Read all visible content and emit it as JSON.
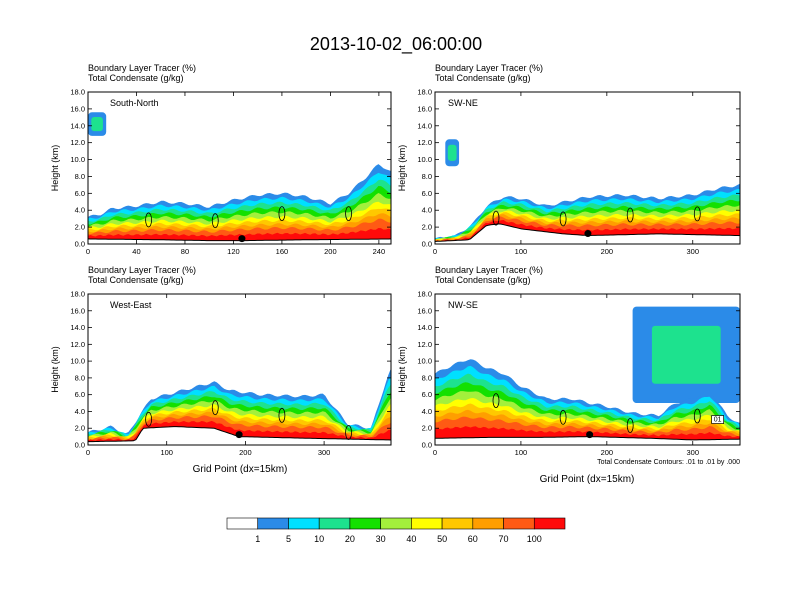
{
  "figure": {
    "title": "2013-10-02_06:00:00",
    "xlabel": "Grid Point (dx=15km)",
    "ylabel": "Height (km)",
    "field_label": "Boundary Layer Tracer   (%)",
    "contour_label": "Total Condensate   (g/kg)",
    "contour_note": "Total Condensate Contours: .01 to .01 by .000",
    "contour_value_label": "01"
  },
  "colorbar": {
    "levels": [
      "1",
      "5",
      "10",
      "20",
      "30",
      "40",
      "50",
      "60",
      "70",
      "100"
    ],
    "colors": [
      "#ffffff",
      "#2b8be8",
      "#00e0ff",
      "#1de28e",
      "#14e000",
      "#a3f03c",
      "#ffff00",
      "#ffc800",
      "#ff9e00",
      "#ff5a14",
      "#ff0a0a"
    ]
  },
  "chart_data": [
    {
      "type": "heatmap",
      "label": "South-North",
      "xlim": [
        0,
        250
      ],
      "xticks": [
        "0",
        "40",
        "80",
        "120",
        "160",
        "200",
        "240"
      ],
      "ylim": [
        0,
        18
      ],
      "yticks": [
        "0.0",
        "2.0",
        "4.0",
        "6.0",
        "8.0",
        "10.0",
        "12.0",
        "14.0",
        "16.0",
        "18.0"
      ],
      "marker_x": 127,
      "terrain_top": [
        [
          0,
          0.6
        ],
        [
          60,
          0.5
        ],
        [
          100,
          0.4
        ],
        [
          127,
          0.4
        ],
        [
          180,
          0.5
        ],
        [
          250,
          0.6
        ]
      ],
      "plume_top": [
        [
          0,
          3.2
        ],
        [
          10,
          3.5
        ],
        [
          20,
          4.2
        ],
        [
          40,
          4.5
        ],
        [
          60,
          5.0
        ],
        [
          80,
          4.8
        ],
        [
          100,
          4.4
        ],
        [
          120,
          5.2
        ],
        [
          140,
          5.8
        ],
        [
          160,
          6.0
        ],
        [
          180,
          5.6
        ],
        [
          200,
          4.8
        ],
        [
          215,
          6.0
        ],
        [
          230,
          8.0
        ],
        [
          240,
          9.5
        ],
        [
          250,
          8.5
        ]
      ],
      "upper_cloud": {
        "x": [
          0,
          15
        ],
        "ylim": [
          12.8,
          15.6
        ]
      }
    },
    {
      "type": "heatmap",
      "label": "SW-NE",
      "xlim": [
        0,
        355
      ],
      "xticks": [
        "0",
        "100",
        "200",
        "300"
      ],
      "ylim": [
        0,
        18
      ],
      "yticks": [
        "0.0",
        "2.0",
        "4.0",
        "6.0",
        "8.0",
        "10.0",
        "12.0",
        "14.0",
        "16.0",
        "18.0"
      ],
      "marker_x": 178,
      "terrain_top": [
        [
          0,
          0.3
        ],
        [
          40,
          0.5
        ],
        [
          60,
          2.2
        ],
        [
          75,
          2.4
        ],
        [
          100,
          1.8
        ],
        [
          150,
          1.2
        ],
        [
          178,
          1.0
        ],
        [
          260,
          1.2
        ],
        [
          355,
          1.0
        ]
      ],
      "plume_top": [
        [
          0,
          0.6
        ],
        [
          25,
          1.0
        ],
        [
          45,
          2.5
        ],
        [
          60,
          4.5
        ],
        [
          80,
          5.6
        ],
        [
          100,
          5.4
        ],
        [
          130,
          4.5
        ],
        [
          160,
          5.2
        ],
        [
          180,
          5.6
        ],
        [
          220,
          5.8
        ],
        [
          260,
          5.4
        ],
        [
          300,
          5.8
        ],
        [
          330,
          6.6
        ],
        [
          355,
          7.0
        ]
      ],
      "upper_cloud": {
        "x": [
          12,
          28
        ],
        "ylim": [
          9.2,
          12.4
        ]
      }
    },
    {
      "type": "heatmap",
      "label": "West-East",
      "xlim": [
        0,
        385
      ],
      "xticks": [
        "0",
        "100",
        "200",
        "300"
      ],
      "ylim": [
        0,
        18
      ],
      "yticks": [
        "0.0",
        "2.0",
        "4.0",
        "6.0",
        "8.0",
        "10.0",
        "12.0",
        "14.0",
        "16.0",
        "18.0"
      ],
      "marker_x": 192,
      "terrain_top": [
        [
          0,
          0.4
        ],
        [
          60,
          0.5
        ],
        [
          70,
          2.0
        ],
        [
          110,
          2.2
        ],
        [
          160,
          2.0
        ],
        [
          192,
          1.0
        ],
        [
          280,
          0.8
        ],
        [
          385,
          0.6
        ]
      ],
      "plume_top": [
        [
          0,
          1.5
        ],
        [
          30,
          2.2
        ],
        [
          50,
          1.2
        ],
        [
          65,
          3.5
        ],
        [
          80,
          5.5
        ],
        [
          100,
          6.0
        ],
        [
          120,
          6.5
        ],
        [
          140,
          7.0
        ],
        [
          160,
          7.5
        ],
        [
          180,
          6.5
        ],
        [
          220,
          6.0
        ],
        [
          270,
          5.8
        ],
        [
          300,
          6.0
        ],
        [
          330,
          2.5
        ],
        [
          360,
          2.0
        ],
        [
          380,
          8.0
        ],
        [
          385,
          9.0
        ]
      ]
    },
    {
      "type": "heatmap",
      "label": "NW-SE",
      "xlim": [
        0,
        355
      ],
      "xticks": [
        "0",
        "100",
        "200",
        "300"
      ],
      "ylim": [
        0,
        18
      ],
      "yticks": [
        "0.0",
        "2.0",
        "4.0",
        "6.0",
        "8.0",
        "10.0",
        "12.0",
        "14.0",
        "16.0",
        "18.0"
      ],
      "marker_x": 180,
      "terrain_top": [
        [
          0,
          0.8
        ],
        [
          60,
          0.9
        ],
        [
          120,
          0.9
        ],
        [
          180,
          1.0
        ],
        [
          250,
          0.8
        ],
        [
          300,
          0.6
        ],
        [
          355,
          0.7
        ]
      ],
      "plume_top": [
        [
          0,
          8.5
        ],
        [
          20,
          9.5
        ],
        [
          40,
          10.3
        ],
        [
          60,
          9.2
        ],
        [
          80,
          8.5
        ],
        [
          100,
          7.0
        ],
        [
          130,
          5.5
        ],
        [
          160,
          5.5
        ],
        [
          180,
          5.0
        ],
        [
          200,
          4.6
        ],
        [
          230,
          3.8
        ],
        [
          260,
          3.5
        ],
        [
          280,
          5.0
        ],
        [
          300,
          5.5
        ],
        [
          320,
          6.5
        ],
        [
          340,
          3.5
        ],
        [
          355,
          2.5
        ]
      ],
      "upper_cloud": {
        "x": [
          230,
          355
        ],
        "ylim": [
          5.0,
          16.5
        ]
      }
    }
  ]
}
